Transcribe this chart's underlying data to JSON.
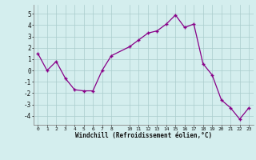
{
  "x": [
    0,
    1,
    2,
    3,
    4,
    5,
    6,
    7,
    8,
    10,
    11,
    12,
    13,
    14,
    15,
    16,
    17,
    18,
    19,
    20,
    21,
    22,
    23
  ],
  "y": [
    1.5,
    0.0,
    0.8,
    -0.7,
    -1.7,
    -1.8,
    -1.8,
    0.0,
    1.3,
    2.1,
    2.7,
    3.3,
    3.5,
    4.1,
    4.9,
    3.8,
    4.1,
    0.6,
    -0.4,
    -2.6,
    -3.3,
    -4.3,
    -3.3
  ],
  "line_color": "#880088",
  "marker_color": "#880088",
  "bg_color": "#d4eeee",
  "grid_color": "#aacccc",
  "xlabel": "Windchill (Refroidissement éolien,°C)",
  "yticks": [
    -4,
    -3,
    -2,
    -1,
    0,
    1,
    2,
    3,
    4,
    5
  ],
  "xticks": [
    0,
    1,
    2,
    3,
    4,
    5,
    6,
    7,
    8,
    10,
    11,
    12,
    13,
    14,
    15,
    16,
    17,
    18,
    19,
    20,
    21,
    22,
    23
  ],
  "xlim": [
    -0.5,
    23.5
  ],
  "ylim": [
    -4.8,
    5.8
  ]
}
